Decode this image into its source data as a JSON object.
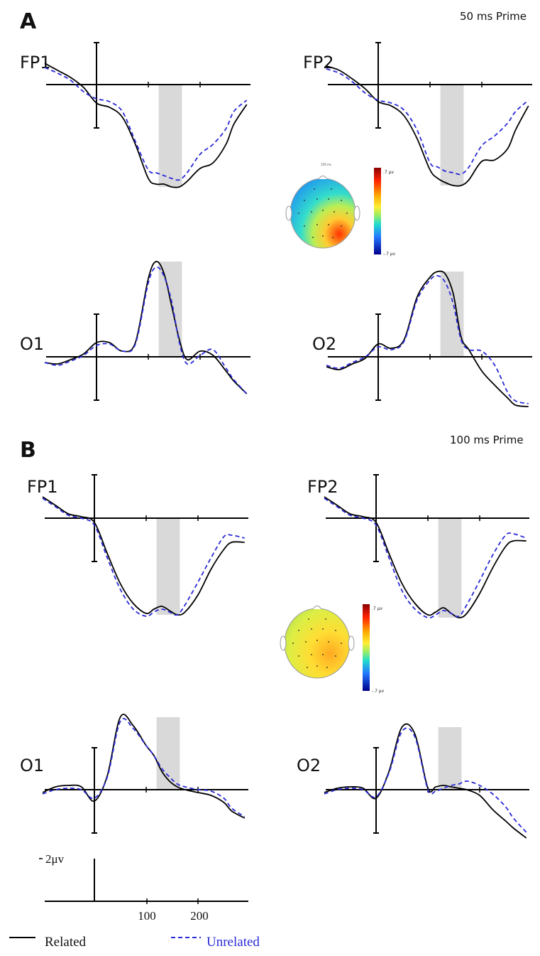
{
  "legend": {
    "related": "Related",
    "unrelated": "Unrelated"
  },
  "colors": {
    "related": "#000000",
    "unrelated": "#2a2ad8",
    "highlight": "#d9d9d9"
  },
  "scale_bar": {
    "label": "2μv",
    "x_ticks": [
      "100",
      "200"
    ]
  },
  "chart_data": [
    {
      "type": "line",
      "panel": "A",
      "title": "50 ms Prime",
      "xlabel": "",
      "ylabel": "",
      "x_unit": "ms",
      "highlight_window_ms": [
        120,
        165
      ],
      "topomap": {
        "time_label": "150 ms",
        "color_max": ".7 μv",
        "color_min": "-.7 μv"
      },
      "channels": [
        {
          "name": "FP1",
          "x": [
            -100,
            -75,
            -50,
            -25,
            0,
            25,
            50,
            75,
            100,
            115,
            130,
            145,
            160,
            175,
            200,
            225,
            250,
            265,
            290
          ],
          "series": [
            {
              "name": "Related",
              "values": [
                1.5,
                1.0,
                0.5,
                -0.2,
                -1.3,
                -1.6,
                -2.3,
                -4.2,
                -6.6,
                -7.0,
                -7.0,
                -7.2,
                -7.2,
                -6.8,
                -5.9,
                -5.5,
                -4.2,
                -2.8,
                -1.4
              ]
            },
            {
              "name": "Unrelated",
              "values": [
                1.2,
                0.8,
                0.3,
                -0.5,
                -1.0,
                -1.2,
                -1.9,
                -4.0,
                -6.0,
                -6.2,
                -6.4,
                -6.6,
                -6.7,
                -6.2,
                -4.9,
                -4.2,
                -3.1,
                -1.9,
                -1.1
              ]
            }
          ]
        },
        {
          "name": "FP2",
          "x": [
            -100,
            -75,
            -50,
            -25,
            0,
            25,
            50,
            75,
            100,
            115,
            130,
            145,
            160,
            175,
            200,
            225,
            250,
            265,
            290
          ],
          "series": [
            {
              "name": "Related",
              "values": [
                1.3,
                1.0,
                0.4,
                -0.3,
                -1.2,
                -1.5,
                -2.2,
                -3.8,
                -6.0,
                -6.6,
                -6.9,
                -7.1,
                -7.1,
                -6.7,
                -5.4,
                -5.3,
                -4.5,
                -3.2,
                -1.5
              ]
            },
            {
              "name": "Unrelated",
              "values": [
                1.1,
                0.8,
                0.2,
                -0.6,
                -1.1,
                -1.3,
                -1.8,
                -3.2,
                -5.5,
                -5.8,
                -6.1,
                -6.2,
                -6.3,
                -5.8,
                -4.3,
                -3.6,
                -2.7,
                -1.9,
                -1.1
              ]
            }
          ]
        },
        {
          "name": "O1",
          "x": [
            -100,
            -75,
            -50,
            -25,
            0,
            25,
            50,
            75,
            100,
            115,
            130,
            145,
            160,
            175,
            200,
            225,
            250,
            265,
            290
          ],
          "series": [
            {
              "name": "Related",
              "values": [
                -0.4,
                -0.5,
                -0.2,
                0.2,
                1.0,
                1.0,
                0.4,
                1.0,
                5.5,
                6.7,
                5.9,
                3.6,
                1.2,
                -0.2,
                0.4,
                0.1,
                -1.0,
                -1.7,
                -2.6
              ]
            },
            {
              "name": "Unrelated",
              "values": [
                -0.4,
                -0.6,
                -0.3,
                0.1,
                0.8,
                0.9,
                0.4,
                0.9,
                5.2,
                6.3,
                5.7,
                3.9,
                1.0,
                -0.5,
                0.1,
                0.5,
                -0.8,
                -1.6,
                -2.6
              ]
            }
          ]
        },
        {
          "name": "O2",
          "x": [
            -100,
            -75,
            -50,
            -25,
            0,
            25,
            50,
            75,
            100,
            115,
            130,
            145,
            160,
            175,
            200,
            225,
            250,
            265,
            290
          ],
          "series": [
            {
              "name": "Related",
              "values": [
                -0.7,
                -0.9,
                -0.5,
                -0.1,
                0.9,
                0.6,
                1.2,
                4.2,
                5.6,
                6.0,
                5.8,
                4.4,
                1.4,
                0.5,
                -1.0,
                -2.0,
                -2.9,
                -3.4,
                -3.5
              ]
            },
            {
              "name": "Unrelated",
              "values": [
                -0.6,
                -0.8,
                -0.4,
                0.0,
                0.7,
                0.5,
                1.1,
                4.0,
                5.4,
                5.7,
                5.2,
                3.7,
                1.2,
                0.5,
                0.4,
                -0.6,
                -2.5,
                -3.1,
                -3.3
              ]
            }
          ]
        }
      ]
    },
    {
      "type": "line",
      "panel": "B",
      "title": "100 ms Prime",
      "xlabel": "",
      "ylabel": "",
      "x_unit": "ms",
      "highlight_window_ms": [
        120,
        165
      ],
      "topomap": {
        "time_label": "",
        "color_max": ".7 μv",
        "color_min": "-.7 μv"
      },
      "channels": [
        {
          "name": "FP1",
          "x": [
            -100,
            -75,
            -50,
            -25,
            0,
            25,
            50,
            75,
            100,
            115,
            130,
            145,
            160,
            175,
            200,
            225,
            250,
            265,
            290
          ],
          "series": [
            {
              "name": "Related",
              "values": [
                1.5,
                0.9,
                0.3,
                0.1,
                -0.3,
                -2.5,
                -4.6,
                -6.0,
                -6.7,
                -6.4,
                -6.2,
                -6.5,
                -6.8,
                -6.6,
                -5.4,
                -3.6,
                -2.2,
                -1.7,
                -1.7
              ]
            },
            {
              "name": "Unrelated",
              "values": [
                1.4,
                0.8,
                0.2,
                0.0,
                -0.5,
                -2.8,
                -5.0,
                -6.4,
                -6.9,
                -6.6,
                -6.4,
                -6.6,
                -6.8,
                -6.1,
                -4.5,
                -2.8,
                -1.3,
                -1.2,
                -1.4
              ]
            }
          ]
        },
        {
          "name": "FP2",
          "x": [
            -100,
            -75,
            -50,
            -25,
            0,
            25,
            50,
            75,
            100,
            115,
            130,
            145,
            160,
            175,
            200,
            225,
            250,
            265,
            290
          ],
          "series": [
            {
              "name": "Related",
              "values": [
                1.5,
                0.9,
                0.3,
                0.1,
                -0.3,
                -2.5,
                -4.6,
                -6.0,
                -6.8,
                -6.6,
                -6.3,
                -6.7,
                -7.0,
                -6.7,
                -5.3,
                -3.5,
                -2.0,
                -1.6,
                -1.6
              ]
            },
            {
              "name": "Unrelated",
              "values": [
                1.4,
                0.8,
                0.2,
                0.0,
                -0.5,
                -2.8,
                -5.1,
                -6.4,
                -7.0,
                -6.8,
                -6.5,
                -6.7,
                -6.9,
                -6.1,
                -4.4,
                -2.6,
                -1.2,
                -1.1,
                -1.4
              ]
            }
          ]
        },
        {
          "name": "O1",
          "x": [
            -100,
            -75,
            -50,
            -25,
            0,
            25,
            50,
            75,
            100,
            115,
            130,
            145,
            160,
            175,
            200,
            225,
            250,
            265,
            290
          ],
          "series": [
            {
              "name": "Related",
              "values": [
                -0.2,
                0.2,
                0.3,
                0.2,
                -0.8,
                1.0,
                5.1,
                4.5,
                3.1,
                2.4,
                1.3,
                0.6,
                0.2,
                0.0,
                -0.2,
                -0.4,
                -0.9,
                -1.5,
                -2.0
              ]
            },
            {
              "name": "Unrelated",
              "values": [
                -0.3,
                0.0,
                0.1,
                0.0,
                -0.6,
                0.9,
                4.8,
                4.3,
                3.1,
                2.4,
                1.5,
                0.9,
                0.4,
                0.2,
                0.0,
                -0.1,
                -0.6,
                -1.3,
                -1.9
              ]
            }
          ]
        },
        {
          "name": "O2",
          "x": [
            -100,
            -75,
            -50,
            -25,
            0,
            25,
            50,
            75,
            100,
            115,
            130,
            145,
            160,
            175,
            200,
            225,
            250,
            265,
            290
          ],
          "series": [
            {
              "name": "Related",
              "values": [
                -0.2,
                0.1,
                0.2,
                0.1,
                -0.6,
                1.3,
                4.4,
                3.9,
                0.1,
                0.2,
                0.3,
                0.2,
                0.1,
                0.0,
                -0.4,
                -1.4,
                -2.2,
                -2.7,
                -3.4
              ]
            },
            {
              "name": "Unrelated",
              "values": [
                -0.3,
                0.0,
                0.1,
                0.0,
                -0.5,
                1.2,
                4.1,
                3.7,
                0.0,
                -0.1,
                0.1,
                0.3,
                0.4,
                0.6,
                0.3,
                -0.3,
                -1.2,
                -2.0,
                -3.0
              ]
            }
          ]
        }
      ]
    }
  ]
}
